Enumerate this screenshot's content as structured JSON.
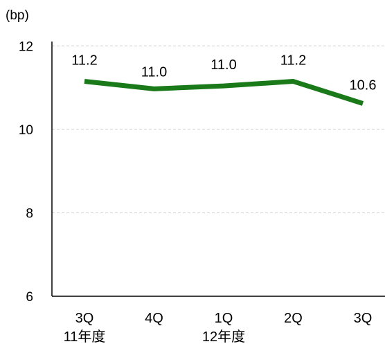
{
  "chart_data": {
    "type": "line",
    "unit_label": "(bp)",
    "categories": [
      "3Q",
      "4Q",
      "1Q",
      "2Q",
      "3Q"
    ],
    "fiscal_year_labels": [
      "11年度",
      "",
      "12年度",
      "",
      ""
    ],
    "series": [
      {
        "values": [
          11.2,
          11.0,
          11.0,
          11.2,
          10.6
        ],
        "value_labels": [
          "11.2",
          "11.0",
          "11.0",
          "11.2",
          "10.6"
        ],
        "plotted_values": [
          11.15,
          10.97,
          11.04,
          11.15,
          10.62
        ],
        "color": "#1a7a1a"
      }
    ],
    "ylim": [
      6,
      13
    ],
    "yticks": [
      6,
      8,
      10,
      12
    ],
    "grid": true,
    "legend": "none"
  }
}
